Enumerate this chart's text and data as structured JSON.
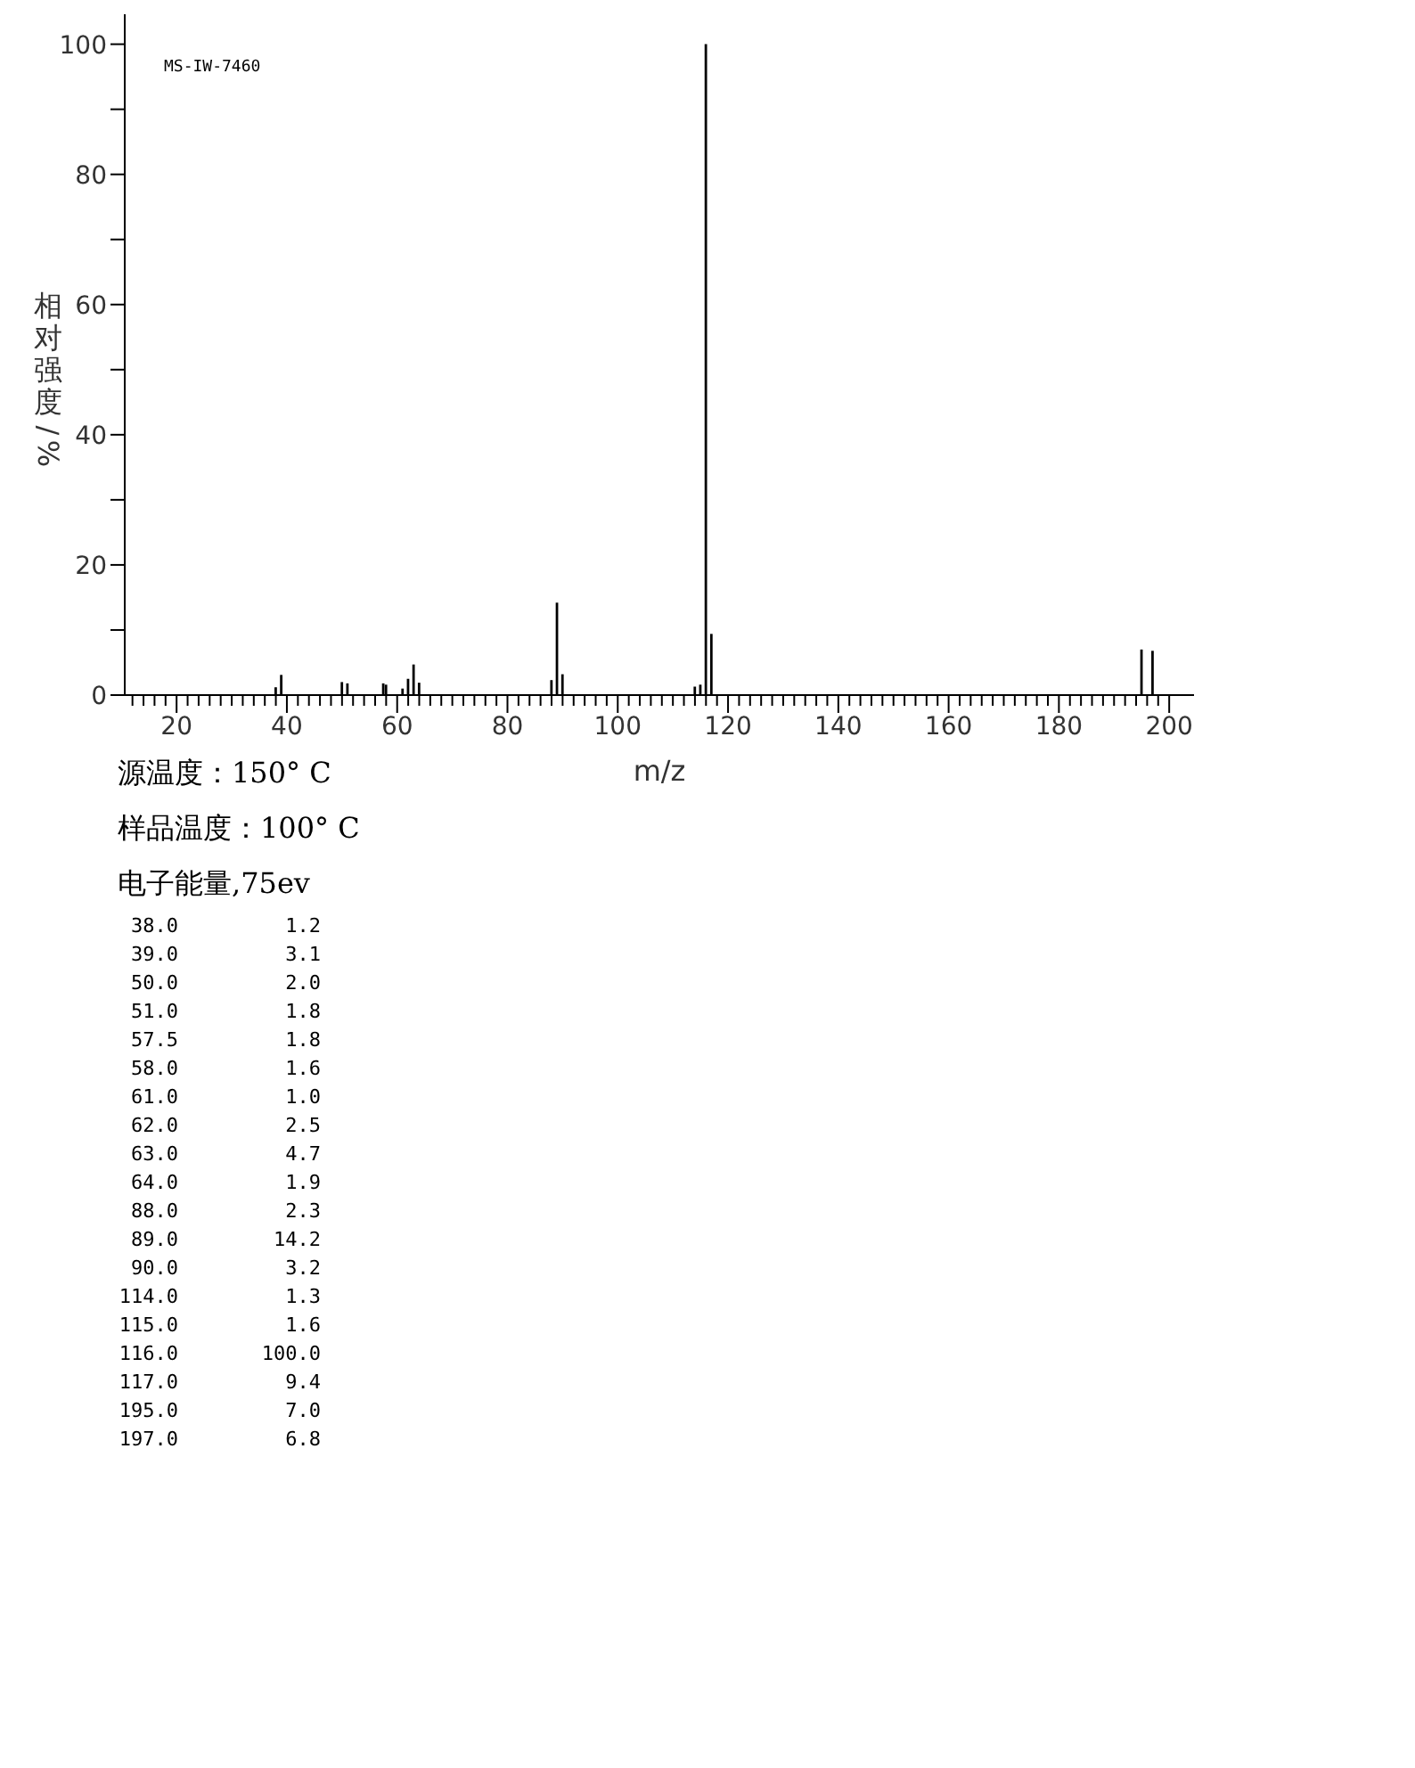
{
  "chart_data": {
    "type": "bar",
    "xlabel": "m/z",
    "ylabel": "相对强度/%",
    "x": [
      38,
      39,
      50,
      51,
      57.5,
      58,
      61,
      62,
      63,
      64,
      88,
      89,
      90,
      114,
      115,
      116,
      117,
      195,
      197
    ],
    "values": [
      1.2,
      3.1,
      2.0,
      1.8,
      1.8,
      1.6,
      1.0,
      2.5,
      4.7,
      1.9,
      2.3,
      14.2,
      3.2,
      1.3,
      1.6,
      100.0,
      9.4,
      7.0,
      6.8
    ],
    "color": "#000000",
    "xlim": [
      10.6,
      204.5
    ],
    "xticks": [
      {
        "value": 12,
        "label": null
      },
      {
        "value": 14,
        "label": null
      },
      {
        "value": 16,
        "label": null
      },
      {
        "value": 18,
        "label": null
      },
      20,
      {
        "value": 22,
        "label": null
      },
      {
        "value": 24,
        "label": null
      },
      {
        "value": 26,
        "label": null
      },
      {
        "value": 28,
        "label": null
      },
      {
        "value": 30,
        "label": null
      },
      {
        "value": 32,
        "label": null
      },
      {
        "value": 34,
        "label": null
      },
      {
        "value": 36,
        "label": null
      },
      {
        "value": 38,
        "label": null
      },
      40,
      {
        "value": 42,
        "label": null
      },
      {
        "value": 44,
        "label": null
      },
      {
        "value": 46,
        "label": null
      },
      {
        "value": 48,
        "label": null
      },
      {
        "value": 50,
        "label": null
      },
      {
        "value": 52,
        "label": null
      },
      {
        "value": 54,
        "label": null
      },
      {
        "value": 56,
        "label": null
      },
      {
        "value": 58,
        "label": null
      },
      60,
      {
        "value": 62,
        "label": null
      },
      {
        "value": 64,
        "label": null
      },
      {
        "value": 66,
        "label": null
      },
      {
        "value": 68,
        "label": null
      },
      {
        "value": 70,
        "label": null
      },
      {
        "value": 72,
        "label": null
      },
      {
        "value": 74,
        "label": null
      },
      {
        "value": 76,
        "label": null
      },
      {
        "value": 78,
        "label": null
      },
      80,
      {
        "value": 82,
        "label": null
      },
      {
        "value": 84,
        "label": null
      },
      {
        "value": 86,
        "label": null
      },
      {
        "value": 88,
        "label": null
      },
      {
        "value": 90,
        "label": null
      },
      {
        "value": 92,
        "label": null
      },
      {
        "value": 94,
        "label": null
      },
      {
        "value": 96,
        "label": null
      },
      {
        "value": 98,
        "label": null
      },
      100,
      {
        "value": 102,
        "label": null
      },
      {
        "value": 104,
        "label": null
      },
      {
        "value": 106,
        "label": null
      },
      {
        "value": 108,
        "label": null
      },
      {
        "value": 110,
        "label": null
      },
      {
        "value": 112,
        "label": null
      },
      {
        "value": 114,
        "label": null
      },
      {
        "value": 116,
        "label": null
      },
      {
        "value": 118,
        "label": null
      },
      120,
      {
        "value": 122,
        "label": null
      },
      {
        "value": 124,
        "label": null
      },
      {
        "value": 126,
        "label": null
      },
      {
        "value": 128,
        "label": null
      },
      {
        "value": 130,
        "label": null
      },
      {
        "value": 132,
        "label": null
      },
      {
        "value": 134,
        "label": null
      },
      {
        "value": 136,
        "label": null
      },
      {
        "value": 138,
        "label": null
      },
      140,
      {
        "value": 142,
        "label": null
      },
      {
        "value": 144,
        "label": null
      },
      {
        "value": 146,
        "label": null
      },
      {
        "value": 148,
        "label": null
      },
      {
        "value": 150,
        "label": null
      },
      {
        "value": 152,
        "label": null
      },
      {
        "value": 154,
        "label": null
      },
      {
        "value": 156,
        "label": null
      },
      {
        "value": 158,
        "label": null
      },
      160,
      {
        "value": 162,
        "label": null
      },
      {
        "value": 164,
        "label": null
      },
      {
        "value": 166,
        "label": null
      },
      {
        "value": 168,
        "label": null
      },
      {
        "value": 170,
        "label": null
      },
      {
        "value": 172,
        "label": null
      },
      {
        "value": 174,
        "label": null
      },
      {
        "value": 176,
        "label": null
      },
      {
        "value": 178,
        "label": null
      },
      180,
      {
        "value": 182,
        "label": null
      },
      {
        "value": 184,
        "label": null
      },
      {
        "value": 186,
        "label": null
      },
      {
        "value": 188,
        "label": null
      },
      {
        "value": 190,
        "label": null
      },
      {
        "value": 192,
        "label": null
      },
      {
        "value": 194,
        "label": null
      },
      {
        "value": 196,
        "label": null
      },
      {
        "value": 198,
        "label": null
      },
      200
    ],
    "ylim": [
      0,
      104.6
    ],
    "yticks": [
      0,
      {
        "value": 10,
        "label": null
      },
      20,
      {
        "value": 30,
        "label": null
      },
      40,
      {
        "value": 50,
        "label": null
      },
      60,
      {
        "value": 70,
        "label": null
      },
      80,
      {
        "value": 90,
        "label": null
      },
      100
    ],
    "grid": false,
    "legend": false,
    "annotations": [
      "MS-IW-7460",
      "源温度：150° C",
      "样品温度：100° C",
      "电子能量,75ev",
      "38.0",
      "1.2",
      "39.0",
      "3.1",
      "50.0",
      "2.0",
      "51.0",
      "1.8",
      "57.5",
      "1.8",
      "58.0",
      "1.6",
      "61.0",
      "1.0",
      "62.0",
      "2.5",
      "63.0",
      "4.7",
      "64.0",
      "1.9",
      "88.0",
      "2.3",
      "89.0",
      "14.2",
      "90.0",
      "3.2",
      "114.0",
      "1.3",
      "115.0",
      "1.6",
      "116.0",
      "100.0",
      "117.0",
      "9.4",
      "195.0",
      "7.0",
      "197.0",
      "6.8"
    ]
  }
}
